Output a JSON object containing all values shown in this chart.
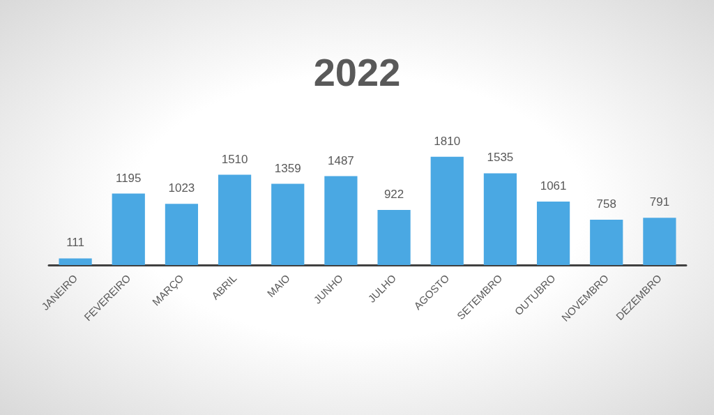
{
  "chart_data": {
    "type": "bar",
    "title": "2022",
    "categories": [
      "JANEIRO",
      "FEVEREIRO",
      "MARÇO",
      "ABRIL",
      "MAIO",
      "JUNHO",
      "JULHO",
      "AGOSTO",
      "SETEMBRO",
      "OUTUBRO",
      "NOVEMBRO",
      "DEZEMBRO"
    ],
    "values": [
      111,
      1195,
      1023,
      1510,
      1359,
      1487,
      922,
      1810,
      1535,
      1061,
      758,
      791
    ],
    "color": "#4aa8e3",
    "data_labels": true
  }
}
